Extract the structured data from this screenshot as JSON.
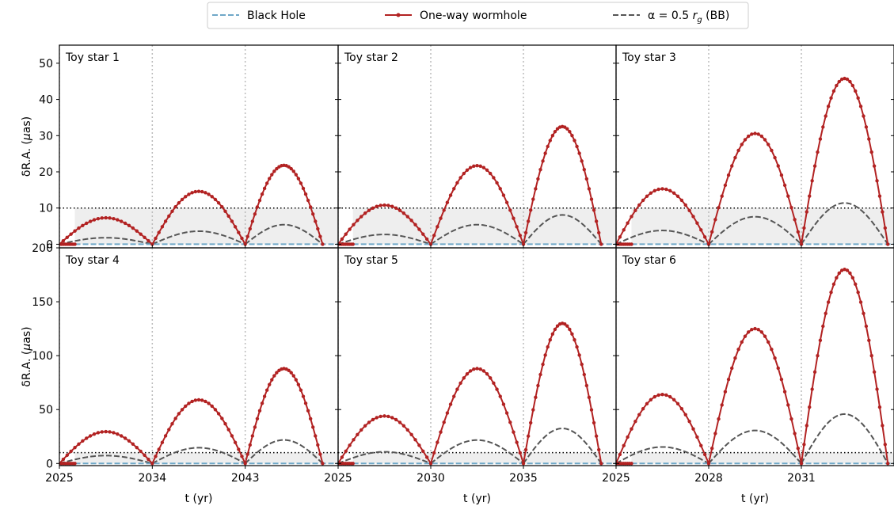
{
  "chart_data": {
    "type": "line",
    "legend": {
      "placement": "top-center",
      "entries": [
        {
          "label": "Black Hole",
          "color": "#6fa8c8",
          "style": "dashed"
        },
        {
          "label": "One-way wormhole",
          "color": "#b22222",
          "style": "solid-markers"
        },
        {
          "label_prefix": "α = 0.5 ",
          "label_math": "r",
          "label_sub": "g",
          "label_suffix": " (BB)",
          "color": "#555555",
          "style": "dashed"
        }
      ]
    },
    "xlabel": "t (yr)",
    "ylabel_prefix": "δR.A. (",
    "ylabel_math": "μ",
    "ylabel_suffix": "as)",
    "threshold": 10,
    "rows": [
      {
        "ylim": [
          -1,
          55
        ],
        "yticks": [
          "0",
          "10",
          "20",
          "30",
          "40",
          "50"
        ],
        "ytick_values": [
          0,
          10,
          20,
          30,
          40,
          50
        ]
      },
      {
        "ylim": [
          -2,
          200
        ],
        "yticks": [
          "0",
          "50",
          "100",
          "150",
          "200"
        ],
        "ytick_values": [
          0,
          50,
          100,
          150,
          200
        ]
      }
    ],
    "columns": [
      {
        "xticks": [
          "2025",
          "2034",
          "2043"
        ],
        "xtick_values": [
          2025,
          2034,
          2043
        ],
        "xlim": [
          2025,
          2052
        ],
        "start": 2026.5,
        "end": 2050.5
      },
      {
        "xticks": [
          "2025",
          "2030",
          "2035"
        ],
        "xtick_values": [
          2025,
          2030,
          2035
        ],
        "xlim": [
          2025,
          2040
        ],
        "start": 2025.8,
        "end": 2039.2
      },
      {
        "xticks": [
          "2025",
          "2028",
          "2031"
        ],
        "xtick_values": [
          2025,
          2028,
          2031
        ],
        "xlim": [
          2025,
          2034
        ],
        "start": 2025.5,
        "end": 2033.8
      }
    ],
    "panels": [
      {
        "title": "Toy star 1",
        "row": 0,
        "col": 0,
        "wormhole_peaks": [
          7.3,
          14.6,
          21.8
        ],
        "bb_peaks": [
          1.8,
          3.6,
          5.4
        ]
      },
      {
        "title": "Toy star 2",
        "row": 0,
        "col": 1,
        "wormhole_peaks": [
          10.8,
          21.7,
          32.5
        ],
        "bb_peaks": [
          2.7,
          5.4,
          8.1
        ]
      },
      {
        "title": "Toy star 3",
        "row": 0,
        "col": 2,
        "wormhole_peaks": [
          15.3,
          30.6,
          45.8
        ],
        "bb_peaks": [
          3.8,
          7.6,
          11.4
        ]
      },
      {
        "title": "Toy star 4",
        "row": 1,
        "col": 0,
        "wormhole_peaks": [
          29.5,
          59.0,
          88.0
        ],
        "bb_peaks": [
          7.3,
          14.6,
          21.8
        ]
      },
      {
        "title": "Toy star 5",
        "row": 1,
        "col": 1,
        "wormhole_peaks": [
          44.0,
          88.0,
          130.0
        ],
        "bb_peaks": [
          10.8,
          21.7,
          32.5
        ]
      },
      {
        "title": "Toy star 6",
        "row": 1,
        "col": 2,
        "wormhole_peaks": [
          64.0,
          125.0,
          180.0
        ],
        "bb_peaks": [
          15.3,
          30.6,
          45.8
        ]
      }
    ],
    "colors": {
      "wormhole": "#b22222",
      "bb": "#555555",
      "bh": "#6fa8c8",
      "shade": "#eeeeee",
      "vline": "#bbbbbb"
    }
  }
}
